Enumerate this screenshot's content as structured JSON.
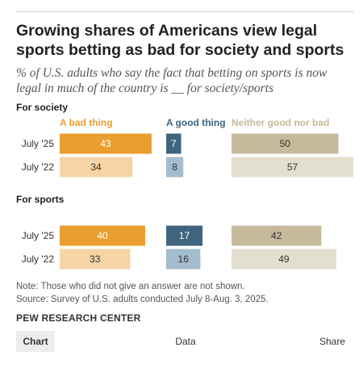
{
  "title": "Growing shares of Americans view legal sports betting as bad for society and sports",
  "subtitle": "% of U.S. adults who say the fact that betting on sports is now legal in much of the country is __ for society/sports",
  "note": "Note: Those who did not give an answer are not shown.",
  "source": "Source: Survey of U.S. adults conducted July 8-Aug. 3, 2025.",
  "org": "PEW RESEARCH CENTER",
  "tabs": {
    "chart": "Chart",
    "data": "Data",
    "share": "Share"
  },
  "colors": {
    "bad_dark": "#EA9E2F",
    "bad_light": "#F6D4A5",
    "good_dark": "#40647E",
    "good_light": "#A3BCCE",
    "neither_dark": "#C6BA9B",
    "neither_light": "#E3DFCF"
  },
  "chart_data": {
    "type": "bar",
    "orientation": "horizontal",
    "categories": [
      "A bad thing",
      "A good thing",
      "Neither good nor bad"
    ],
    "groups": [
      {
        "label": "For society",
        "rows": [
          {
            "label": "July '25",
            "values": [
              43,
              7,
              50
            ]
          },
          {
            "label": "July '22",
            "values": [
              34,
              8,
              57
            ]
          }
        ]
      },
      {
        "label": "For sports",
        "rows": [
          {
            "label": "July '25",
            "values": [
              40,
              17,
              42
            ]
          },
          {
            "label": "July '22",
            "values": [
              33,
              16,
              49
            ]
          }
        ]
      }
    ]
  }
}
